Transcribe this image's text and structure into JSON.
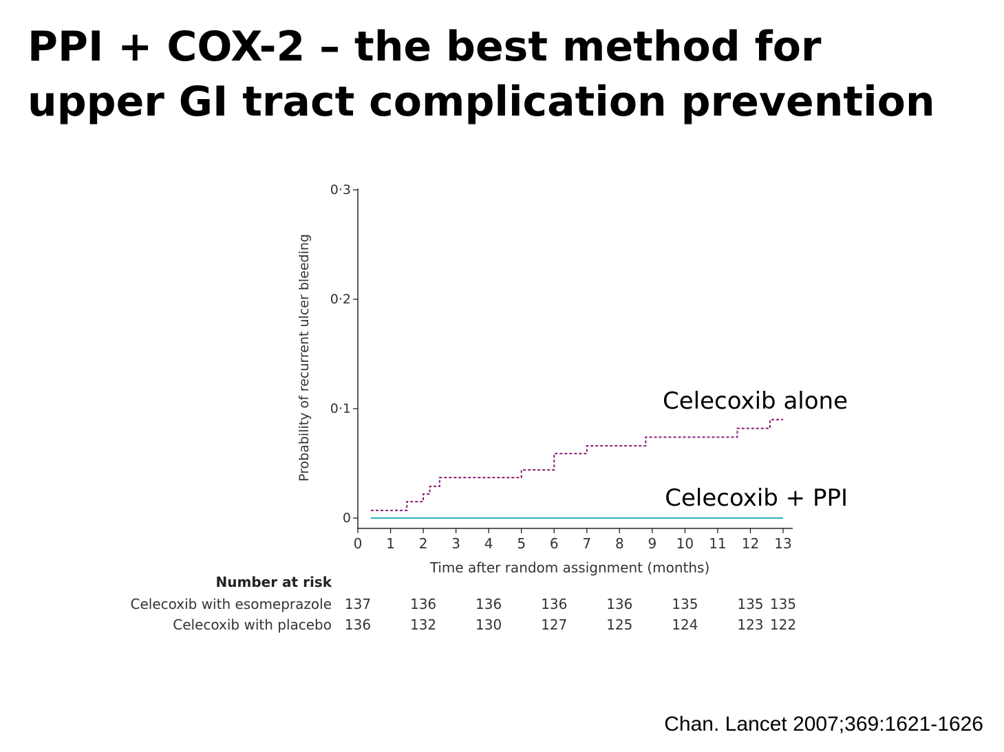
{
  "slide": {
    "title_line1": "PPI + COX-2 – the best method for",
    "title_line2": "upper GI tract complication prevention",
    "citation": "Chan. Lancet 2007;369:1621-1626"
  },
  "chart_data": {
    "type": "line",
    "subtype": "step",
    "ylabel": "Probability of recurrent ulcer bleeding",
    "xlabel": "Time after random assignment (months)",
    "xlim": [
      0,
      13
    ],
    "ylim": [
      0,
      0.3
    ],
    "x_ticks": [
      0,
      1,
      2,
      3,
      4,
      5,
      6,
      7,
      8,
      9,
      10,
      11,
      12,
      13
    ],
    "x_tick_labels": [
      "0",
      "1",
      "2",
      "3",
      "4",
      "5",
      "6",
      "7",
      "8",
      "9",
      "10",
      "11",
      "12",
      "13"
    ],
    "y_ticks": [
      0,
      0.1,
      0.2,
      0.3
    ],
    "y_tick_labels": [
      "0",
      "0·1",
      "0·2",
      "0·3"
    ],
    "series": [
      {
        "name": "Celecoxib alone",
        "color": "#8a1a78",
        "style": "dashed",
        "x": [
          0.4,
          1.5,
          2.0,
          2.2,
          2.5,
          5.0,
          6.0,
          7.0,
          8.8,
          11.6,
          12.6,
          13.0
        ],
        "y": [
          0.007,
          0.015,
          0.022,
          0.029,
          0.037,
          0.044,
          0.059,
          0.066,
          0.074,
          0.082,
          0.09,
          0.09
        ]
      },
      {
        "name": "Celecoxib + PPI",
        "color": "#2ab0c0",
        "style": "solid",
        "x": [
          0.4,
          13.0
        ],
        "y": [
          0,
          0
        ]
      }
    ],
    "risk_table": {
      "title": "Number at risk",
      "x": [
        0,
        2,
        4,
        6,
        8,
        10,
        12,
        13
      ],
      "rows": [
        {
          "label": "Celecoxib with esomeprazole",
          "values": [
            "137",
            "136",
            "136",
            "136",
            "136",
            "135",
            "135",
            "135"
          ]
        },
        {
          "label": "Celecoxib with placebo",
          "values": [
            "136",
            "132",
            "130",
            "127",
            "125",
            "124",
            "123",
            "122"
          ]
        }
      ]
    }
  }
}
